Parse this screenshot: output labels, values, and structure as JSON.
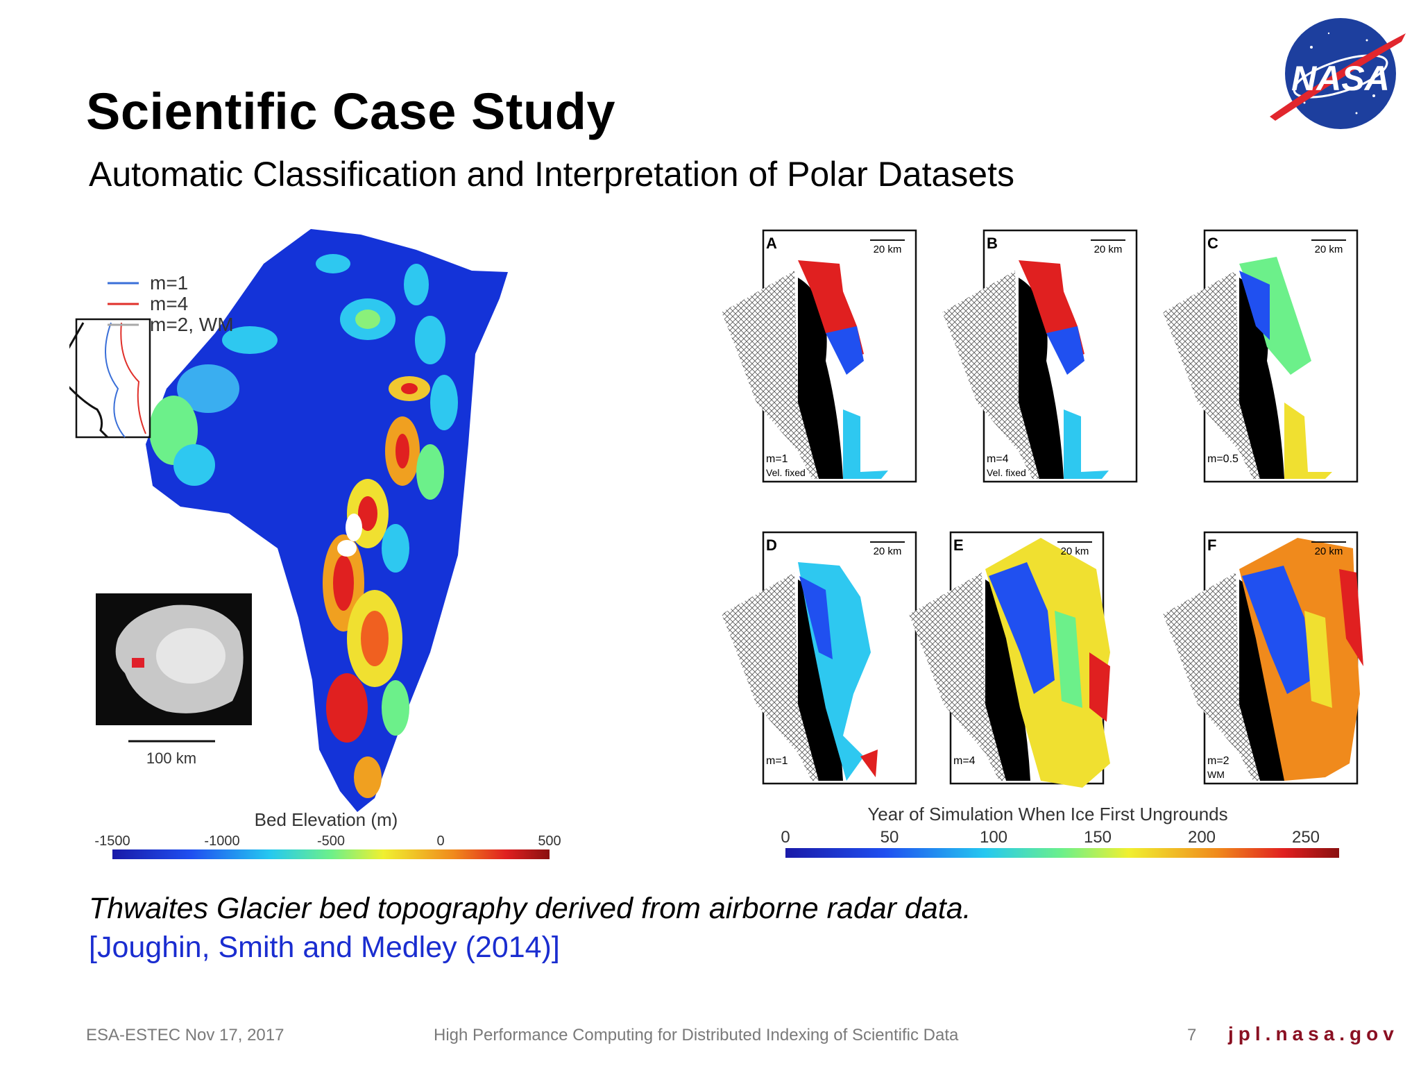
{
  "slide": {
    "title": "Scientific Case Study",
    "subtitle": "Automatic Classification and Interpretation of Polar Datasets",
    "caption": "Thwaites Glacier bed topography derived from airborne radar data.",
    "citation": "[Joughin, Smith and Medley (2014)]"
  },
  "logo": {
    "text": "NASA",
    "icon": "nasa-meatball-logo"
  },
  "left_figure": {
    "legend": [
      {
        "label": "m=1",
        "color": "#3a6fd8"
      },
      {
        "label": "m=4",
        "color": "#e0302a"
      },
      {
        "label": "m=2, WM",
        "color": "#a8a8a8"
      }
    ],
    "scale_label": "100 km",
    "colorbar_title": "Bed Elevation (m)",
    "colorbar_ticks": [
      "-1500",
      "-1000",
      "-500",
      "0",
      "500"
    ]
  },
  "right_figure": {
    "scale_label": "20 km",
    "panels": [
      {
        "letter": "A",
        "label1": "m=1",
        "label2": "Vel. fixed"
      },
      {
        "letter": "B",
        "label1": "m=4",
        "label2": "Vel. fixed"
      },
      {
        "letter": "C",
        "label1": "m=0.5",
        "label2": ""
      },
      {
        "letter": "D",
        "label1": "m=1",
        "label2": ""
      },
      {
        "letter": "E",
        "label1": "m=4",
        "label2": ""
      },
      {
        "letter": "F",
        "label1": "m=2",
        "label2": "WM"
      }
    ],
    "colorbar_title": "Year of Simulation When Ice First Ungrounds",
    "colorbar_ticks": [
      "0",
      "50",
      "100",
      "150",
      "200",
      "250"
    ]
  },
  "footer": {
    "left": "ESA-ESTEC Nov 17, 2017",
    "center": "High Performance Computing for Distributed Indexing of Scientific Data",
    "page": "7",
    "url": "jpl.nasa.gov"
  }
}
